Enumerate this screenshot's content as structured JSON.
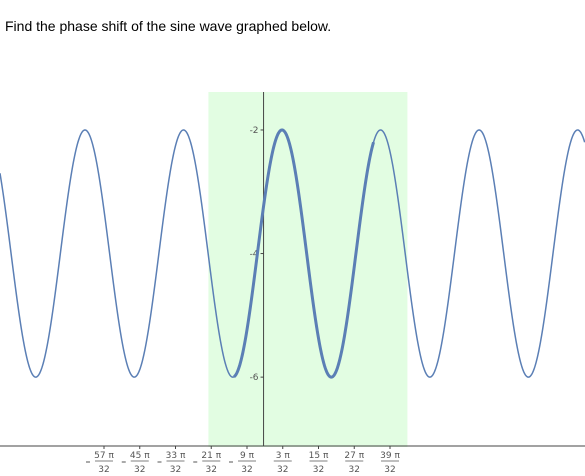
{
  "question": "Find the phase shift of the sine wave graphed below.",
  "colors": {
    "curve": "#5b7fb5",
    "highlight": "#e2fde2",
    "axis": "#444444",
    "tick_text": "#555555"
  },
  "chart_data": {
    "type": "line",
    "title": "",
    "xlabel": "",
    "ylabel": "",
    "function": "y = -4 + 2*sin(4x + phase), max at x = 3pi/32",
    "amplitude": 2,
    "vertical_shift": -4,
    "frequency": 4,
    "peak_x_over_pi": 0.09375,
    "xlim_over_pi": [
      -1.3375,
      1.6312
    ],
    "ylim": [
      -7.6,
      -0.9
    ],
    "highlight_x_over_pi": [
      -0.28,
      0.73
    ],
    "bold_segment_x_over_pi": [
      -0.15,
      0.56
    ],
    "x_ticks": [
      {
        "num": "57 π",
        "den": "32",
        "neg": true,
        "value_over_pi": -1.78125
      },
      {
        "num": "45 π",
        "den": "32",
        "neg": true,
        "value_over_pi": -1.40625
      },
      {
        "num": "33 π",
        "den": "32",
        "neg": true,
        "value_over_pi": -1.03125
      },
      {
        "num": "21 π",
        "den": "32",
        "neg": true,
        "value_over_pi": -0.65625
      },
      {
        "num": "9 π",
        "den": "32",
        "neg": true,
        "value_over_pi": -0.28125
      },
      {
        "num": "3 π",
        "den": "32",
        "neg": false,
        "value_over_pi": 0.09375
      },
      {
        "num": "15 π",
        "den": "32",
        "neg": false,
        "value_over_pi": 0.46875
      },
      {
        "num": "27 π",
        "den": "32",
        "neg": false,
        "value_over_pi": 0.84375
      },
      {
        "num": "39 π",
        "den": "32",
        "neg": false,
        "value_over_pi": 1.21875
      }
    ],
    "y_ticks": [
      {
        "label": "-2",
        "value": -2
      },
      {
        "label": "-4",
        "value": -4
      },
      {
        "label": "-6",
        "value": -6
      }
    ]
  }
}
